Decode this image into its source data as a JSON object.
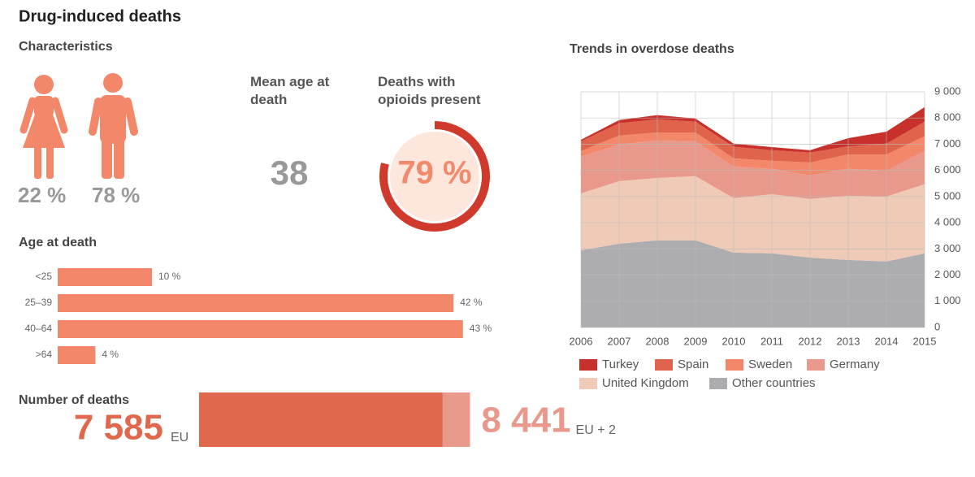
{
  "title": "Drug-induced deaths",
  "characteristics": {
    "heading": "Characteristics",
    "female": {
      "value": 22,
      "label": "22 %"
    },
    "male": {
      "value": 78,
      "label": "78 %"
    },
    "mean_age": {
      "heading": "Mean age at death",
      "value": 38
    },
    "opioids": {
      "heading": "Deaths with opioids present",
      "value": 79,
      "label": "79 %"
    }
  },
  "chart_data": [
    {
      "type": "hbar",
      "title": "Age at death",
      "categories": [
        "<25",
        "25–39",
        "40–64",
        ">64"
      ],
      "values": [
        10,
        42,
        43,
        4
      ],
      "value_labels": [
        "10 %",
        "42 %",
        "43 %",
        "4 %"
      ],
      "color": "#f2876a"
    },
    {
      "type": "stacked-area",
      "title": "Trends in overdose deaths",
      "x": [
        2006,
        2007,
        2008,
        2009,
        2010,
        2011,
        2012,
        2013,
        2014,
        2015
      ],
      "xlim": [
        2006,
        2015
      ],
      "xticks": [
        2006,
        2007,
        2008,
        2009,
        2010,
        2011,
        2012,
        2013,
        2014,
        2015
      ],
      "ylim": [
        0,
        9000
      ],
      "yticks": [
        0,
        {
          "value": 1000,
          "label": "1 000"
        },
        {
          "value": 2000,
          "label": "2 000"
        },
        {
          "value": 3000,
          "label": "3 000"
        },
        {
          "value": 4000,
          "label": "4 000"
        },
        {
          "value": 5000,
          "label": "5 000"
        },
        {
          "value": 6000,
          "label": "6 000"
        },
        {
          "value": 7000,
          "label": "7 000"
        },
        {
          "value": 8000,
          "label": "8 000"
        },
        {
          "value": 9000,
          "label": "9 000"
        }
      ],
      "grid": true,
      "series": [
        {
          "name": "Turkey",
          "color": "#c8312b",
          "values": [
            60,
            120,
            160,
            120,
            120,
            120,
            90,
            310,
            460,
            560
          ]
        },
        {
          "name": "Spain",
          "color": "#e0644c",
          "values": [
            370,
            470,
            500,
            410,
            440,
            400,
            380,
            310,
            410,
            560
          ]
        },
        {
          "name": "Sweden",
          "color": "#f2876a",
          "values": [
            220,
            340,
            310,
            340,
            310,
            310,
            490,
            550,
            620,
            560
          ]
        },
        {
          "name": "Germany",
          "color": "#e8998b",
          "values": [
            1400,
            1400,
            1430,
            1330,
            1210,
            970,
            900,
            1030,
            990,
            1270
          ]
        },
        {
          "name": "United Kingdom",
          "color": "#efcbb7",
          "values": [
            2170,
            2390,
            2380,
            2450,
            2080,
            2260,
            2240,
            2450,
            2480,
            2640
          ]
        },
        {
          "name": "Other countries",
          "color": "#adadb0",
          "values": [
            2950,
            3200,
            3330,
            3330,
            2860,
            2830,
            2670,
            2580,
            2520,
            2830
          ]
        }
      ]
    },
    {
      "type": "total-bar",
      "title": "Number of deaths",
      "categories": [
        "EU",
        "EU + 2"
      ],
      "values": [
        7585,
        8441
      ],
      "value_labels": [
        "7 585",
        "8 441"
      ],
      "colors": [
        "#e0684c",
        "#e8998b"
      ]
    }
  ]
}
